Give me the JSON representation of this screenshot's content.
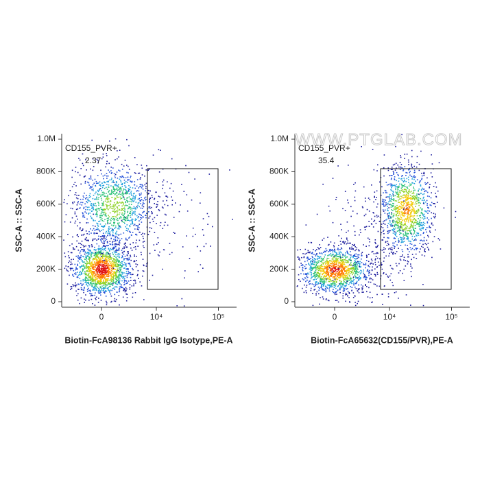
{
  "chart_data": [
    {
      "type": "scatter",
      "gate_label": "CD155_PVR+",
      "gate_value": 2.37,
      "xlabel": "Biotin-FcA98136 Rabbit IgG Isotype,PE-A",
      "ylabel": "SSC-A :: SSC-A",
      "xscale": "biexponential",
      "xlim": [
        -5500,
        190000
      ],
      "xticks": [
        0,
        {
          "value": 10000,
          "label": "10⁴"
        },
        {
          "value": 100000,
          "label": "10⁵"
        }
      ],
      "ylim": [
        -34000,
        1035000
      ],
      "yticks": [
        0,
        {
          "value": 200000,
          "label": "200K"
        },
        {
          "value": 400000,
          "label": "400K"
        },
        {
          "value": 600000,
          "label": "600K"
        },
        {
          "value": 800000,
          "label": "800K"
        },
        {
          "value": 1000000,
          "label": "1.0M"
        }
      ]
    },
    {
      "type": "scatter",
      "gate_label": "CD155_PVR+",
      "gate_value": 35.4,
      "xlabel": "Biotin-FcA65632(CD155/PVR),PE-A",
      "ylabel": "SSC-A :: SSC-A",
      "watermark": "WWW.PTGLAB.COM",
      "xscale": "biexponential",
      "xlim": [
        -5500,
        190000
      ],
      "xticks": [
        0,
        {
          "value": 10000,
          "label": "10⁴"
        },
        {
          "value": 100000,
          "label": "10⁵"
        }
      ],
      "ylim": [
        -34000,
        1035000
      ],
      "yticks": [
        0,
        {
          "value": 200000,
          "label": "200K"
        },
        {
          "value": 400000,
          "label": "400K"
        },
        {
          "value": 600000,
          "label": "600K"
        },
        {
          "value": 800000,
          "label": "800K"
        },
        {
          "value": 1000000,
          "label": "1.0M"
        }
      ]
    }
  ]
}
